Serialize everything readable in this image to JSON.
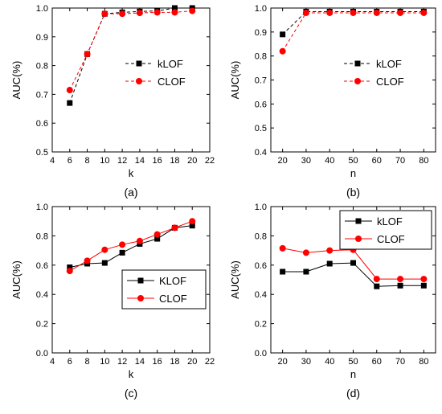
{
  "chart_data": [
    {
      "type": "line",
      "panel_label": "(a)",
      "xlabel": "k",
      "ylabel": "AUC(%)",
      "xlim": [
        4,
        22
      ],
      "ylim": [
        0.5,
        1.0
      ],
      "xticks": [
        4,
        6,
        8,
        10,
        12,
        14,
        16,
        18,
        20,
        22
      ],
      "yticks": [
        0.5,
        0.6,
        0.7,
        0.8,
        0.9,
        1.0
      ],
      "x": [
        6,
        8,
        10,
        12,
        14,
        16,
        18,
        20
      ],
      "legend_position": "center-right",
      "line_style": "dashed",
      "series": [
        {
          "name": "kLOF",
          "color": "#000000",
          "marker": "square",
          "values": [
            0.67,
            0.84,
            0.98,
            0.985,
            0.988,
            0.99,
            1.0,
            1.0
          ]
        },
        {
          "name": "CLOF",
          "color": "#ff0000",
          "marker": "circle",
          "values": [
            0.715,
            0.84,
            0.98,
            0.98,
            0.983,
            0.985,
            0.985,
            0.99
          ]
        }
      ]
    },
    {
      "type": "line",
      "panel_label": "(b)",
      "xlabel": "n",
      "ylabel": "AUC(%)",
      "xlim": [
        15,
        85
      ],
      "ylim": [
        0.4,
        1.0
      ],
      "xticks": [
        20,
        30,
        40,
        50,
        60,
        70,
        80
      ],
      "yticks": [
        0.4,
        0.5,
        0.6,
        0.7,
        0.8,
        0.9,
        1.0
      ],
      "x": [
        20,
        30,
        40,
        50,
        60,
        70,
        80
      ],
      "legend_position": "center-right",
      "line_style": "dashed",
      "series": [
        {
          "name": "kLOF",
          "color": "#000000",
          "marker": "square",
          "values": [
            0.89,
            0.985,
            0.985,
            0.985,
            0.985,
            0.985,
            0.985
          ]
        },
        {
          "name": "CLOF",
          "color": "#ff0000",
          "marker": "circle",
          "values": [
            0.82,
            0.98,
            0.98,
            0.98,
            0.98,
            0.98,
            0.98
          ]
        }
      ]
    },
    {
      "type": "line",
      "panel_label": "(c)",
      "xlabel": "k",
      "ylabel": "AUC(%)",
      "xlim": [
        4,
        22
      ],
      "ylim": [
        0.0,
        1.0
      ],
      "xticks": [
        4,
        6,
        8,
        10,
        12,
        14,
        16,
        18,
        20,
        22
      ],
      "yticks": [
        0.0,
        0.2,
        0.4,
        0.6,
        0.8,
        1.0
      ],
      "x": [
        6,
        8,
        10,
        12,
        14,
        16,
        18,
        20
      ],
      "legend_position": "center-right",
      "line_style": "solid",
      "series": [
        {
          "name": "KLOF",
          "color": "#000000",
          "marker": "square",
          "values": [
            0.585,
            0.61,
            0.615,
            0.685,
            0.745,
            0.78,
            0.855,
            0.87
          ]
        },
        {
          "name": "CLOF",
          "color": "#ff0000",
          "marker": "circle",
          "values": [
            0.56,
            0.63,
            0.705,
            0.74,
            0.765,
            0.81,
            0.855,
            0.9
          ]
        }
      ]
    },
    {
      "type": "line",
      "panel_label": "(d)",
      "xlabel": "n",
      "ylabel": "AUC(%)",
      "xlim": [
        15,
        85
      ],
      "ylim": [
        0.0,
        1.0
      ],
      "xticks": [
        20,
        30,
        40,
        50,
        60,
        70,
        80
      ],
      "yticks": [
        0.0,
        0.2,
        0.4,
        0.6,
        0.8,
        1.0
      ],
      "x": [
        20,
        30,
        40,
        50,
        60,
        70,
        80
      ],
      "legend_position": "top-right",
      "line_style": "solid",
      "series": [
        {
          "name": "kLOF",
          "color": "#000000",
          "marker": "square",
          "values": [
            0.555,
            0.555,
            0.61,
            0.615,
            0.455,
            0.46,
            0.46
          ]
        },
        {
          "name": "CLOF",
          "color": "#ff0000",
          "marker": "circle",
          "values": [
            0.715,
            0.685,
            0.7,
            0.705,
            0.505,
            0.505,
            0.505
          ]
        }
      ]
    }
  ]
}
